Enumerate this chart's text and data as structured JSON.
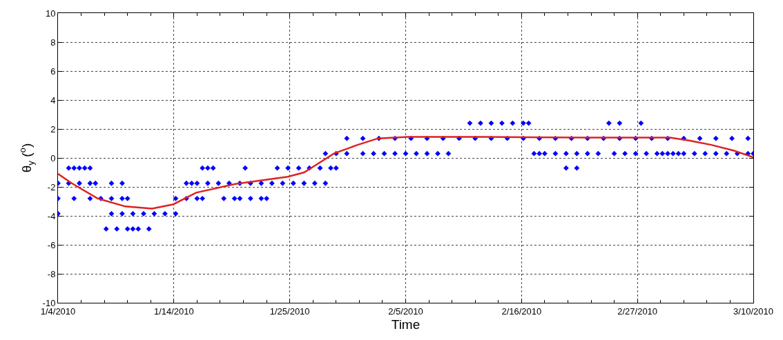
{
  "chart_data": {
    "type": "scatter",
    "xlabel": "Time",
    "ylabel": "θ$_{y}$ ($^{o}$)",
    "grid": true,
    "xlim": [
      "2010-01-04",
      "2010-03-10"
    ],
    "xticks": [
      {
        "value": "2010-01-04",
        "label": "1/4/2010"
      },
      {
        "value": "2010-01-06T04:00",
        "label": null
      },
      {
        "value": "2010-01-08T08:00",
        "label": null
      },
      {
        "value": "2010-01-10T12:00",
        "label": null
      },
      {
        "value": "2010-01-12T16:00",
        "label": null
      },
      {
        "value": "2010-01-14T20:00",
        "label": "1/14/2010"
      },
      {
        "value": "2010-01-17T00:00",
        "label": null
      },
      {
        "value": "2010-01-19T04:00",
        "label": null
      },
      {
        "value": "2010-01-21T08:00",
        "label": null
      },
      {
        "value": "2010-01-23T12:00",
        "label": null
      },
      {
        "value": "2010-01-25T16:00",
        "label": "1/25/2010"
      },
      {
        "value": "2010-01-27T20:00",
        "label": null
      },
      {
        "value": "2010-01-30T00:00",
        "label": null
      },
      {
        "value": "2010-02-01T04:00",
        "label": null
      },
      {
        "value": "2010-02-03T08:00",
        "label": null
      },
      {
        "value": "2010-02-05T12:00",
        "label": "2/5/2010"
      },
      {
        "value": "2010-02-07T16:00",
        "label": null
      },
      {
        "value": "2010-02-09T20:00",
        "label": null
      },
      {
        "value": "2010-02-12T00:00",
        "label": null
      },
      {
        "value": "2010-02-14T04:00",
        "label": null
      },
      {
        "value": "2010-02-16T08:00",
        "label": "2/16/2010"
      },
      {
        "value": "2010-02-18T12:00",
        "label": null
      },
      {
        "value": "2010-02-20T16:00",
        "label": null
      },
      {
        "value": "2010-02-22T20:00",
        "label": null
      },
      {
        "value": "2010-02-25T00:00",
        "label": null
      },
      {
        "value": "2010-02-27T04:00",
        "label": "2/27/2010"
      },
      {
        "value": "2010-03-01T08:00",
        "label": null
      },
      {
        "value": "2010-03-03T12:00",
        "label": null
      },
      {
        "value": "2010-03-05T16:00",
        "label": null
      },
      {
        "value": "2010-03-07T20:00",
        "label": null
      },
      {
        "value": "2010-03-10",
        "label": "3/10/2010"
      }
    ],
    "ylim": [
      -10,
      10
    ],
    "yticks": [
      -10,
      -8,
      -6,
      -4,
      -2,
      0,
      2,
      4,
      6,
      8,
      10
    ],
    "series": [
      {
        "color": "#0000ff",
        "marker": "diamond",
        "x": [
          "2010-01-05",
          "2010-01-05T12:00",
          "2010-01-06",
          "2010-01-06T12:00",
          "2010-01-07",
          "2010-01-17T12:00",
          "2010-01-18",
          "2010-01-18T12:00",
          "2010-01-21T12:00",
          "2010-01-24T12:00",
          "2010-01-25T12:00",
          "2010-01-26T12:00",
          "2010-01-27T12:00",
          "2010-01-28T12:00",
          "2010-01-29T12:00",
          "2010-01-30",
          "2010-02-20T12:00",
          "2010-02-21T12:00",
          "2010-02-11T12:00",
          "2010-02-12T12:00",
          "2010-02-13T12:00",
          "2010-02-14T12:00",
          "2010-02-15T12:00",
          "2010-02-16T12:00",
          "2010-02-17",
          "2010-02-24T12:00",
          "2010-02-25T12:00",
          "2010-02-27T12:00",
          "2010-01-31",
          "2010-02-01T12:00",
          "2010-02-03",
          "2010-02-04T12:00",
          "2010-02-06",
          "2010-02-07T12:00",
          "2010-02-09",
          "2010-02-10T12:00",
          "2010-02-12",
          "2010-02-13T12:00",
          "2010-02-15",
          "2010-02-16T12:00",
          "2010-02-18",
          "2010-02-19T12:00",
          "2010-02-21",
          "2010-02-22T12:00",
          "2010-02-24",
          "2010-02-25T12:00",
          "2010-02-27",
          "2010-02-28T12:00",
          "2010-03-02",
          "2010-03-03T12:00",
          "2010-03-05",
          "2010-03-06T12:00",
          "2010-03-08",
          "2010-03-09T12:00",
          "2010-01-29",
          "2010-01-30",
          "2010-01-31",
          "2010-02-01T12:00",
          "2010-02-02T12:00",
          "2010-02-03T12:00",
          "2010-02-04T12:00",
          "2010-02-05T12:00",
          "2010-02-06T12:00",
          "2010-02-07T12:00",
          "2010-02-08T12:00",
          "2010-02-09T12:00",
          "2010-02-17T12:00",
          "2010-02-18",
          "2010-02-18T12:00",
          "2010-02-19T12:00",
          "2010-02-20T12:00",
          "2010-02-21T12:00",
          "2010-02-22T12:00",
          "2010-02-23T12:00",
          "2010-02-25",
          "2010-02-26",
          "2010-02-27",
          "2010-02-28",
          "2010-03-01",
          "2010-03-01T12:00",
          "2010-03-02",
          "2010-03-02T12:00",
          "2010-03-03",
          "2010-03-03T12:00",
          "2010-03-04T12:00",
          "2010-03-05T12:00",
          "2010-03-06T12:00",
          "2010-03-07T12:00",
          "2010-03-08T12:00",
          "2010-03-09T12:00",
          "2010-03-10",
          "2010-01-04",
          "2010-01-05",
          "2010-01-06",
          "2010-01-07",
          "2010-01-07T12:00",
          "2010-01-09",
          "2010-01-10",
          "2010-01-16",
          "2010-01-16T12:00",
          "2010-01-17",
          "2010-01-18",
          "2010-01-19",
          "2010-01-20",
          "2010-01-21",
          "2010-01-22",
          "2010-01-23",
          "2010-01-24",
          "2010-01-25",
          "2010-01-26",
          "2010-01-27",
          "2010-01-28",
          "2010-01-29",
          "2010-01-04",
          "2010-01-05T12:00",
          "2010-01-07",
          "2010-01-08",
          "2010-01-09",
          "2010-01-10",
          "2010-01-10T12:00",
          "2010-01-15",
          "2010-01-16",
          "2010-01-17",
          "2010-01-17T12:00",
          "2010-01-19T12:00",
          "2010-01-20T12:00",
          "2010-01-21",
          "2010-01-22",
          "2010-01-23",
          "2010-01-23T12:00",
          "2010-01-04",
          "2010-01-09",
          "2010-01-10",
          "2010-01-11",
          "2010-01-12",
          "2010-01-13",
          "2010-01-14",
          "2010-01-15",
          "2010-01-08T12:00",
          "2010-01-09T12:00",
          "2010-01-10T12:00",
          "2010-01-11",
          "2010-01-11T12:00",
          "2010-01-12T12:00"
        ],
        "values": [
          -0.7,
          -0.7,
          -0.7,
          -0.7,
          -0.7,
          -0.7,
          -0.7,
          -0.7,
          -0.7,
          -0.7,
          -0.7,
          -0.7,
          -0.7,
          -0.7,
          -0.7,
          -0.7,
          -0.7,
          -0.7,
          2.4,
          2.4,
          2.4,
          2.4,
          2.4,
          2.4,
          2.4,
          2.4,
          2.4,
          2.4,
          1.35,
          1.35,
          1.35,
          1.35,
          1.35,
          1.35,
          1.35,
          1.35,
          1.35,
          1.35,
          1.35,
          1.35,
          1.35,
          1.35,
          1.35,
          1.35,
          1.35,
          1.35,
          1.35,
          1.35,
          1.35,
          1.35,
          1.35,
          1.35,
          1.35,
          1.35,
          0.3,
          0.3,
          0.3,
          0.3,
          0.3,
          0.3,
          0.3,
          0.3,
          0.3,
          0.3,
          0.3,
          0.3,
          0.3,
          0.3,
          0.3,
          0.3,
          0.3,
          0.3,
          0.3,
          0.3,
          0.3,
          0.3,
          0.3,
          0.3,
          0.3,
          0.3,
          0.3,
          0.3,
          0.3,
          0.3,
          0.3,
          0.3,
          0.3,
          0.3,
          0.3,
          0.3,
          0.3,
          -1.75,
          -1.75,
          -1.75,
          -1.75,
          -1.75,
          -1.75,
          -1.75,
          -1.75,
          -1.75,
          -1.75,
          -1.75,
          -1.75,
          -1.75,
          -1.75,
          -1.75,
          -1.75,
          -1.75,
          -1.75,
          -1.75,
          -1.75,
          -1.75,
          -1.75,
          -2.8,
          -2.8,
          -2.8,
          -2.8,
          -2.8,
          -2.8,
          -2.8,
          -2.8,
          -2.8,
          -2.8,
          -2.8,
          -2.8,
          -2.8,
          -2.8,
          -2.8,
          -2.8,
          -2.8,
          -3.85,
          -3.85,
          -3.85,
          -3.85,
          -3.85,
          -3.85,
          -3.85,
          -3.85,
          -4.9,
          -4.9,
          -4.9,
          -4.9,
          -4.9,
          -4.9
        ]
      },
      {
        "type": "line",
        "color": "#dd2222",
        "line_style": "solid",
        "x": [
          "2010-01-04",
          "2010-01-05T07:00",
          "2010-01-07T17:00",
          "2010-01-10T07:00",
          "2010-01-12T19:00",
          "2010-01-14T19:00",
          "2010-01-16T22:00",
          "2010-01-20T14:00",
          "2010-01-25T12:00",
          "2010-01-27",
          "2010-01-28T02:00",
          "2010-01-29T19:00",
          "2010-02-01",
          "2010-02-02T22:00",
          "2010-02-05T17:00",
          "2010-02-12T19:00",
          "2010-02-22T12:00",
          "2010-03-02T05:00",
          "2010-03-04",
          "2010-03-06T02:00",
          "2010-03-08T05:00",
          "2010-03-10"
        ],
        "values": [
          -1.1,
          -1.75,
          -2.8,
          -3.35,
          -3.5,
          -3.2,
          -2.4,
          -1.8,
          -1.3,
          -1.0,
          -0.5,
          0.3,
          0.9,
          1.35,
          1.45,
          1.45,
          1.4,
          1.4,
          1.2,
          0.9,
          0.5,
          0.05
        ]
      }
    ]
  }
}
